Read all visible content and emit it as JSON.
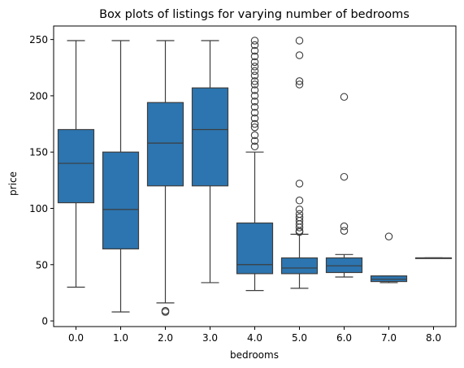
{
  "chart_data": {
    "type": "box",
    "title": "Box plots of listings for varying number of bedrooms",
    "xlabel": "bedrooms",
    "ylabel": "price",
    "ylim": [
      -5,
      262
    ],
    "yticks": [
      0,
      50,
      100,
      150,
      200,
      250
    ],
    "grid": false,
    "box_color": "#2c75b0",
    "line_color": "#3d3d3d",
    "categories": [
      "0.0",
      "1.0",
      "2.0",
      "3.0",
      "4.0",
      "5.0",
      "6.0",
      "7.0",
      "8.0"
    ],
    "boxes": [
      {
        "category": "0.0",
        "whisker_low": 30,
        "q1": 105,
        "median": 140,
        "q3": 170,
        "whisker_high": 249,
        "outliers": []
      },
      {
        "category": "1.0",
        "whisker_low": 8,
        "q1": 64,
        "median": 99,
        "q3": 150,
        "whisker_high": 249,
        "outliers": []
      },
      {
        "category": "2.0",
        "whisker_low": 16,
        "q1": 120,
        "median": 158,
        "q3": 194,
        "whisker_high": 249,
        "outliers": [
          8,
          9
        ]
      },
      {
        "category": "3.0",
        "whisker_low": 34,
        "q1": 120,
        "median": 170,
        "q3": 207,
        "whisker_high": 249,
        "outliers": []
      },
      {
        "category": "4.0",
        "whisker_low": 27,
        "q1": 42,
        "median": 50,
        "q3": 87,
        "whisker_high": 150,
        "outliers": [
          155,
          160,
          165,
          172,
          175,
          180,
          185,
          190,
          195,
          200,
          205,
          210,
          213,
          218,
          222,
          226,
          230,
          235,
          240,
          245,
          249
        ]
      },
      {
        "category": "5.0",
        "whisker_low": 29,
        "q1": 42,
        "median": 47,
        "q3": 56,
        "whisker_high": 77,
        "outliers": [
          79,
          80,
          83,
          86,
          89,
          92,
          95,
          99,
          107,
          122,
          210,
          213,
          236,
          249
        ]
      },
      {
        "category": "6.0",
        "whisker_low": 39,
        "q1": 43,
        "median": 49,
        "q3": 56,
        "whisker_high": 59,
        "outliers": [
          80,
          84,
          128,
          199
        ]
      },
      {
        "category": "7.0",
        "whisker_low": 34,
        "q1": 35,
        "median": 37,
        "q3": 40,
        "whisker_high": 40,
        "outliers": [
          75
        ]
      },
      {
        "category": "8.0",
        "whisker_low": 56,
        "q1": 56,
        "median": 56,
        "q3": 56,
        "whisker_high": 56,
        "outliers": []
      }
    ]
  }
}
